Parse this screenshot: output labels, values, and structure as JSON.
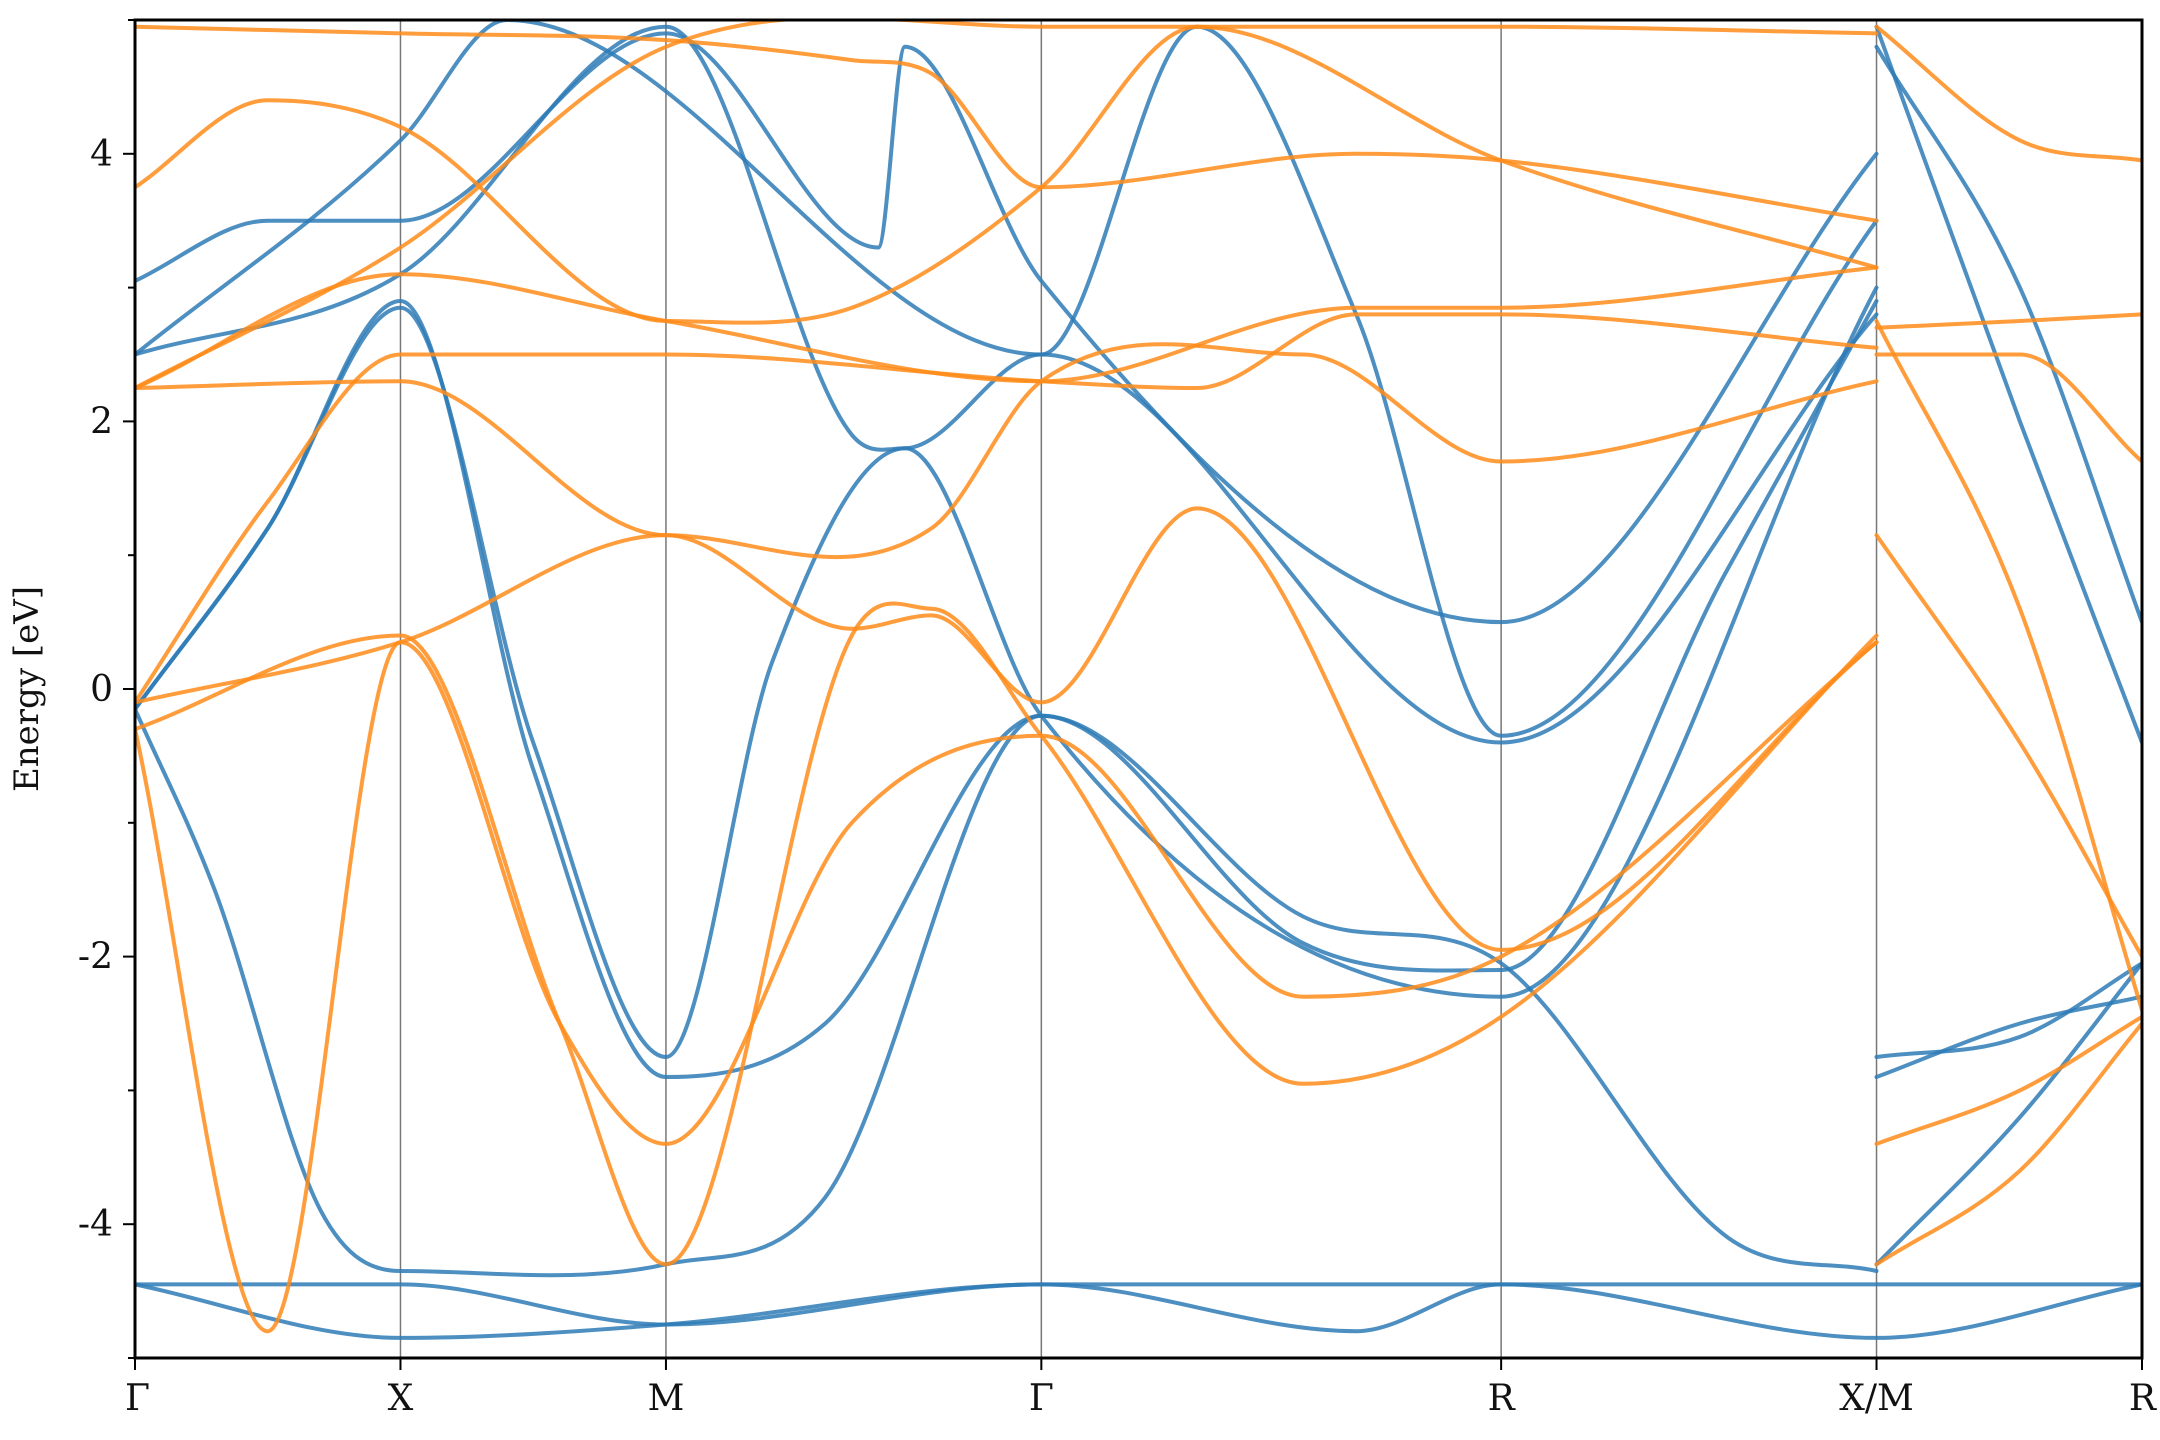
{
  "chart_data": {
    "type": "line",
    "title": "",
    "xlabel": "",
    "ylabel": "Energy [eV]",
    "ylim": [
      -5,
      5
    ],
    "yticks": [
      -4,
      -2,
      0,
      2,
      4
    ],
    "ytick_labels": [
      "-4",
      "-2",
      "0",
      "2",
      "4"
    ],
    "x_axis_kind": "band-path",
    "high_symmetry_points": [
      "Γ",
      "X",
      "M",
      "Γ",
      "R",
      "X/M",
      "R"
    ],
    "path_positions": [
      0,
      0.5,
      1.0,
      1.707,
      2.573,
      3.28,
      3.78
    ],
    "grid": false,
    "legend": "none",
    "colors": {
      "spin_up": "#2E7BB6",
      "spin_down": "#FF8C1A"
    },
    "series": [
      {
        "group": "blue",
        "values": [
          [
            0,
            -4.45
          ],
          [
            0.5,
            -4.45
          ],
          [
            1.0,
            -4.75
          ],
          [
            1.707,
            -4.45
          ],
          [
            2.3,
            -4.8
          ],
          [
            2.573,
            -4.45
          ],
          [
            3.28,
            -4.85
          ],
          [
            3.78,
            -4.45
          ]
        ]
      },
      {
        "group": "blue",
        "values": [
          [
            0,
            -4.45
          ],
          [
            0.5,
            -4.85
          ],
          [
            1.0,
            -4.75
          ],
          [
            1.707,
            -4.45
          ],
          [
            2.573,
            -4.45
          ],
          [
            3.28,
            -4.45
          ],
          [
            3.78,
            -4.45
          ]
        ]
      },
      {
        "group": "blue",
        "values": [
          [
            0,
            -0.15
          ],
          [
            0.15,
            -1.5
          ],
          [
            0.35,
            -3.9
          ],
          [
            0.5,
            -4.35
          ],
          [
            1.0,
            -4.3
          ],
          [
            1.3,
            -3.8
          ],
          [
            1.707,
            -0.2
          ],
          [
            2.2,
            -1.7
          ],
          [
            2.573,
            -2.05
          ],
          [
            3.0,
            -4.1
          ],
          [
            3.28,
            -4.35
          ]
        ]
      },
      {
        "group": "blue",
        "values": [
          [
            0,
            -0.15
          ],
          [
            0.25,
            1.2
          ],
          [
            0.5,
            2.9
          ],
          [
            0.75,
            -0.6
          ],
          [
            1.0,
            -2.9
          ],
          [
            1.3,
            -2.5
          ],
          [
            1.707,
            -0.2
          ],
          [
            2.2,
            -1.9
          ],
          [
            2.573,
            -2.1
          ],
          [
            3.0,
            0.9
          ],
          [
            3.28,
            2.9
          ]
        ]
      },
      {
        "group": "blue",
        "values": [
          [
            0,
            -0.15
          ],
          [
            0.25,
            1.2
          ],
          [
            0.5,
            2.85
          ],
          [
            0.75,
            -0.4
          ],
          [
            1.0,
            -2.75
          ],
          [
            1.2,
            0.2
          ],
          [
            1.45,
            1.8
          ],
          [
            1.707,
            -0.2
          ],
          [
            2.573,
            -2.3
          ],
          [
            3.28,
            3.0
          ]
        ]
      },
      {
        "group": "blue",
        "values": [
          [
            0,
            2.5
          ],
          [
            0.5,
            3.1
          ],
          [
            1.0,
            4.95
          ],
          [
            1.35,
            1.9
          ],
          [
            1.45,
            1.8
          ],
          [
            1.707,
            2.5
          ],
          [
            2.573,
            -0.4
          ],
          [
            3.28,
            2.8
          ]
        ]
      },
      {
        "group": "blue",
        "values": [
          [
            0,
            3.05
          ],
          [
            0.25,
            3.5
          ],
          [
            0.5,
            3.5
          ],
          [
            1.0,
            4.9
          ],
          [
            1.4,
            3.3
          ],
          [
            1.45,
            4.8
          ],
          [
            1.707,
            3.05
          ],
          [
            2.573,
            0.5
          ],
          [
            3.28,
            4.0
          ]
        ]
      },
      {
        "group": "blue",
        "values": [
          [
            0,
            2.5
          ],
          [
            0.5,
            4.1
          ],
          [
            0.7,
            5.0
          ],
          [
            1.707,
            2.5
          ],
          [
            2.0,
            4.95
          ],
          [
            2.3,
            2.8
          ],
          [
            2.573,
            -0.35
          ],
          [
            3.28,
            3.5
          ]
        ]
      },
      {
        "group": "blue",
        "values": [
          [
            3.28,
            -2.75
          ],
          [
            3.55,
            -2.6
          ],
          [
            3.78,
            -2.05
          ]
        ]
      },
      {
        "group": "blue",
        "values": [
          [
            3.28,
            -2.9
          ],
          [
            3.55,
            -2.5
          ],
          [
            3.78,
            -2.3
          ]
        ]
      },
      {
        "group": "blue",
        "values": [
          [
            3.28,
            -4.3
          ],
          [
            3.55,
            -3.2
          ],
          [
            3.78,
            -2.05
          ]
        ]
      },
      {
        "group": "blue",
        "values": [
          [
            3.28,
            4.95
          ],
          [
            3.55,
            2.0
          ],
          [
            3.78,
            -0.4
          ]
        ]
      },
      {
        "group": "blue",
        "values": [
          [
            3.28,
            4.8
          ],
          [
            3.55,
            3.0
          ],
          [
            3.78,
            0.5
          ]
        ]
      },
      {
        "group": "orange",
        "values": [
          [
            0,
            -0.1
          ],
          [
            0.5,
            0.35
          ],
          [
            1.0,
            1.15
          ],
          [
            1.35,
            0.45
          ],
          [
            1.5,
            0.55
          ],
          [
            1.707,
            -0.1
          ],
          [
            2.0,
            1.35
          ],
          [
            2.573,
            -1.95
          ],
          [
            3.28,
            0.35
          ]
        ]
      },
      {
        "group": "orange",
        "values": [
          [
            0,
            -0.3
          ],
          [
            0.5,
            0.4
          ],
          [
            0.8,
            -2.5
          ],
          [
            1.0,
            -4.3
          ],
          [
            1.35,
            0.4
          ],
          [
            1.5,
            0.6
          ],
          [
            1.707,
            -0.35
          ],
          [
            2.2,
            -2.95
          ],
          [
            2.573,
            -2.45
          ],
          [
            3.28,
            0.4
          ]
        ]
      },
      {
        "group": "orange",
        "values": [
          [
            0,
            -0.3
          ],
          [
            0.25,
            -4.8
          ],
          [
            0.5,
            0.35
          ],
          [
            0.8,
            -2.5
          ],
          [
            1.0,
            -3.4
          ],
          [
            1.35,
            -1.0
          ],
          [
            1.707,
            -0.35
          ],
          [
            2.2,
            -2.3
          ],
          [
            2.573,
            -2.0
          ],
          [
            3.28,
            0.35
          ]
        ]
      },
      {
        "group": "orange",
        "values": [
          [
            0,
            -0.1
          ],
          [
            0.25,
            1.4
          ],
          [
            0.5,
            2.5
          ],
          [
            1.0,
            2.5
          ],
          [
            1.707,
            2.3
          ],
          [
            2.0,
            2.25
          ],
          [
            2.3,
            2.8
          ],
          [
            2.573,
            2.8
          ],
          [
            3.28,
            2.55
          ]
        ]
      },
      {
        "group": "orange",
        "values": [
          [
            0,
            2.25
          ],
          [
            0.5,
            2.3
          ],
          [
            1.0,
            1.15
          ],
          [
            1.5,
            1.2
          ],
          [
            1.707,
            2.3
          ],
          [
            2.2,
            2.5
          ],
          [
            2.573,
            1.7
          ],
          [
            3.28,
            2.3
          ]
        ]
      },
      {
        "group": "orange",
        "values": [
          [
            0,
            3.75
          ],
          [
            0.25,
            4.4
          ],
          [
            0.5,
            4.2
          ],
          [
            1.0,
            2.75
          ],
          [
            1.35,
            2.85
          ],
          [
            1.707,
            3.75
          ],
          [
            2.0,
            4.95
          ],
          [
            2.573,
            3.95
          ],
          [
            3.28,
            3.15
          ]
        ]
      },
      {
        "group": "orange",
        "values": [
          [
            0,
            2.25
          ],
          [
            0.5,
            3.1
          ],
          [
            1.0,
            2.75
          ],
          [
            1.707,
            2.3
          ],
          [
            2.3,
            2.85
          ],
          [
            2.573,
            2.85
          ],
          [
            3.28,
            3.15
          ]
        ]
      },
      {
        "group": "orange",
        "values": [
          [
            0,
            4.95
          ],
          [
            0.5,
            4.9
          ],
          [
            1.0,
            4.85
          ],
          [
            1.35,
            4.7
          ],
          [
            1.5,
            4.6
          ],
          [
            1.707,
            3.75
          ],
          [
            2.3,
            4.0
          ],
          [
            2.573,
            3.95
          ],
          [
            3.28,
            3.5
          ]
        ]
      },
      {
        "group": "orange",
        "values": [
          [
            0,
            2.25
          ],
          [
            0.5,
            3.3
          ],
          [
            1.0,
            4.8
          ],
          [
            1.707,
            4.95
          ],
          [
            2.573,
            4.95
          ],
          [
            3.28,
            4.9
          ]
        ]
      },
      {
        "group": "orange",
        "values": [
          [
            3.28,
            1.15
          ],
          [
            3.55,
            -0.4
          ],
          [
            3.78,
            -2.0
          ]
        ]
      },
      {
        "group": "orange",
        "values": [
          [
            3.28,
            2.75
          ],
          [
            3.55,
            0.6
          ],
          [
            3.78,
            -2.4
          ]
        ]
      },
      {
        "group": "orange",
        "values": [
          [
            3.28,
            -3.4
          ],
          [
            3.55,
            -3.0
          ],
          [
            3.78,
            -2.45
          ]
        ]
      },
      {
        "group": "orange",
        "values": [
          [
            3.28,
            -4.3
          ],
          [
            3.55,
            -3.6
          ],
          [
            3.78,
            -2.5
          ]
        ]
      },
      {
        "group": "orange",
        "values": [
          [
            3.28,
            2.7
          ],
          [
            3.55,
            2.75
          ],
          [
            3.78,
            2.8
          ]
        ]
      },
      {
        "group": "orange",
        "values": [
          [
            3.28,
            2.5
          ],
          [
            3.55,
            2.5
          ],
          [
            3.78,
            1.7
          ]
        ]
      },
      {
        "group": "orange",
        "values": [
          [
            3.28,
            4.95
          ],
          [
            3.55,
            4.1
          ],
          [
            3.78,
            3.95
          ]
        ]
      }
    ]
  }
}
